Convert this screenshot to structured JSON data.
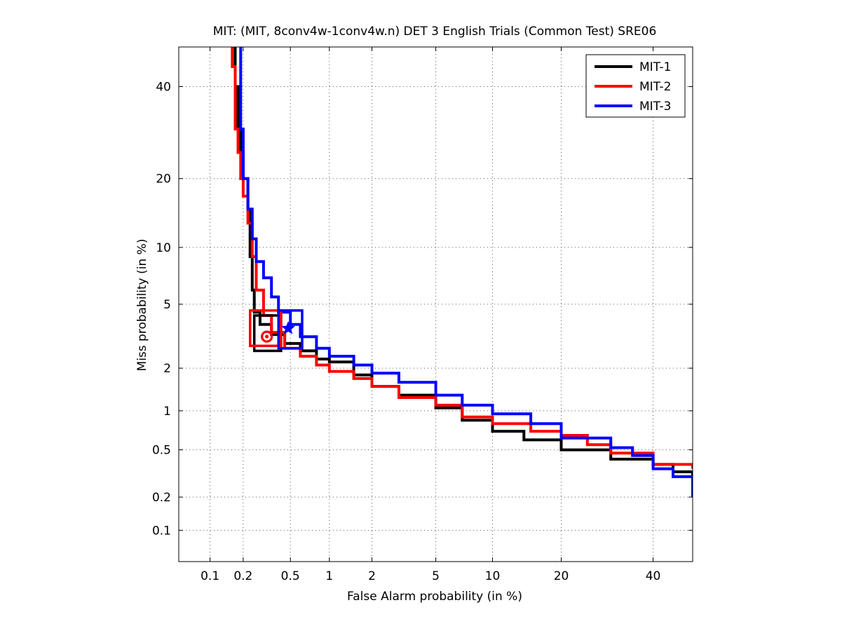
{
  "chart_data": {
    "type": "line",
    "title": "MIT: (MIT, 8conv4w-1conv4w.n) DET 3 English Trials (Common Test) SRE06",
    "xlabel": "False Alarm probability (in %)",
    "ylabel": "Miss probability (in %)",
    "xscale": "probit",
    "yscale": "probit",
    "xlim": [
      0.05,
      50
    ],
    "ylim": [
      0.05,
      50
    ],
    "xticks": [
      0.1,
      0.2,
      0.5,
      1,
      2,
      5,
      10,
      20,
      40
    ],
    "xtick_labels": [
      "0.1",
      "0.2",
      "0.5",
      "1",
      "2",
      "5",
      "10",
      "20",
      "40"
    ],
    "yticks": [
      0.1,
      0.2,
      0.5,
      1,
      2,
      5,
      10,
      20,
      40
    ],
    "ytick_labels": [
      "0.1",
      "0.2",
      "0.5",
      "1",
      "2",
      "5",
      "10",
      "20",
      "40"
    ],
    "grid": true,
    "legend_position": "top-right",
    "series": [
      {
        "name": "MIT-1",
        "color": "#000000",
        "points": [
          [
            0.17,
            55
          ],
          [
            0.17,
            40
          ],
          [
            0.18,
            30
          ],
          [
            0.19,
            25
          ],
          [
            0.2,
            20
          ],
          [
            0.22,
            15
          ],
          [
            0.23,
            9
          ],
          [
            0.24,
            6
          ],
          [
            0.25,
            4.5
          ],
          [
            0.28,
            3.8
          ],
          [
            0.35,
            3.3
          ],
          [
            0.45,
            2.9
          ],
          [
            0.6,
            2.6
          ],
          [
            0.8,
            2.3
          ],
          [
            1.0,
            2.2
          ],
          [
            1.5,
            1.8
          ],
          [
            2,
            1.5
          ],
          [
            3,
            1.3
          ],
          [
            5,
            1.05
          ],
          [
            7,
            0.85
          ],
          [
            10,
            0.7
          ],
          [
            14,
            0.6
          ],
          [
            20,
            0.5
          ],
          [
            30,
            0.42
          ],
          [
            40,
            0.38
          ],
          [
            45,
            0.33
          ],
          [
            50,
            0.28
          ]
        ],
        "operating_points": [
          {
            "kind": "min-dcf",
            "marker": "circle",
            "fa": 0.32,
            "miss": 3.2
          },
          {
            "kind": "actual",
            "marker": "square",
            "fa_range": [
              0.25,
              0.42
            ],
            "miss_range": [
              2.6,
              4.3
            ]
          }
        ]
      },
      {
        "name": "MIT-2",
        "color": "#ff0000",
        "points": [
          [
            0.14,
            55
          ],
          [
            0.16,
            45
          ],
          [
            0.17,
            30
          ],
          [
            0.18,
            25
          ],
          [
            0.19,
            20
          ],
          [
            0.2,
            17
          ],
          [
            0.22,
            13
          ],
          [
            0.24,
            9
          ],
          [
            0.26,
            6
          ],
          [
            0.3,
            4.3
          ],
          [
            0.35,
            3.4
          ],
          [
            0.45,
            2.7
          ],
          [
            0.6,
            2.4
          ],
          [
            0.8,
            2.1
          ],
          [
            1.0,
            1.9
          ],
          [
            1.5,
            1.7
          ],
          [
            2,
            1.5
          ],
          [
            3,
            1.25
          ],
          [
            5,
            1.1
          ],
          [
            7,
            0.9
          ],
          [
            10,
            0.8
          ],
          [
            15,
            0.7
          ],
          [
            20,
            0.65
          ],
          [
            25,
            0.55
          ],
          [
            30,
            0.47
          ],
          [
            40,
            0.38
          ],
          [
            50,
            0.35
          ]
        ],
        "operating_points": [
          {
            "kind": "min-dcf",
            "marker": "circle",
            "fa": 0.32,
            "miss": 3.2
          },
          {
            "kind": "actual",
            "marker": "square",
            "fa_range": [
              0.23,
              0.42
            ],
            "miss_range": [
              2.8,
              4.6
            ]
          }
        ]
      },
      {
        "name": "MIT-3",
        "color": "#0000ff",
        "points": [
          [
            0.18,
            55
          ],
          [
            0.19,
            30
          ],
          [
            0.2,
            20
          ],
          [
            0.22,
            15
          ],
          [
            0.24,
            11
          ],
          [
            0.26,
            8.5
          ],
          [
            0.3,
            7
          ],
          [
            0.35,
            5.5
          ],
          [
            0.4,
            4.5
          ],
          [
            0.5,
            3.8
          ],
          [
            0.6,
            3.2
          ],
          [
            0.8,
            2.7
          ],
          [
            1.0,
            2.4
          ],
          [
            1.5,
            2.1
          ],
          [
            2,
            1.85
          ],
          [
            3,
            1.6
          ],
          [
            5,
            1.3
          ],
          [
            7,
            1.1
          ],
          [
            10,
            0.95
          ],
          [
            15,
            0.8
          ],
          [
            20,
            0.62
          ],
          [
            30,
            0.52
          ],
          [
            35,
            0.45
          ],
          [
            40,
            0.35
          ],
          [
            45,
            0.3
          ],
          [
            50,
            0.2
          ]
        ],
        "operating_points": [
          {
            "kind": "min-dcf",
            "marker": "star",
            "fa": 0.48,
            "miss": 3.6
          },
          {
            "kind": "actual",
            "marker": "square",
            "fa_range": [
              0.4,
              0.62
            ],
            "miss_range": [
              2.7,
              4.6
            ]
          }
        ]
      }
    ]
  }
}
